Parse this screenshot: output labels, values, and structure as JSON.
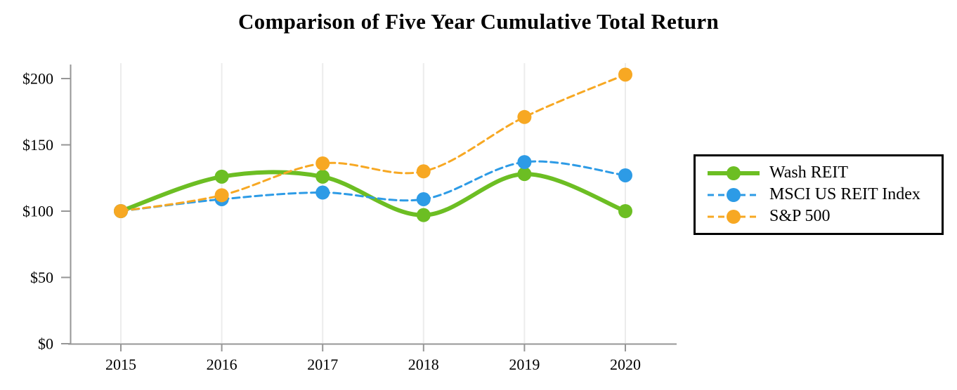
{
  "chart_data": {
    "type": "line",
    "title": "Comparison of Five Year Cumulative Total Return",
    "categories": [
      "2015",
      "2016",
      "2017",
      "2018",
      "2019",
      "2020"
    ],
    "series": [
      {
        "name": "Wash REIT",
        "color": "#6cbe23",
        "style": "solid",
        "line_width": 6,
        "values": [
          100,
          126,
          126,
          97,
          128,
          100
        ]
      },
      {
        "name": "MSCI US REIT Index",
        "color": "#2d9be6",
        "style": "dashed",
        "line_width": 3,
        "values": [
          100,
          109,
          114,
          109,
          137,
          127
        ]
      },
      {
        "name": "S&P 500",
        "color": "#f7a823",
        "style": "dashed",
        "line_width": 3,
        "values": [
          100,
          112,
          136,
          130,
          171,
          203
        ]
      }
    ],
    "xlabel": "",
    "ylabel": "",
    "ylim": [
      0,
      200
    ],
    "ytick_step": 50,
    "ytick_labels": [
      "$0",
      "$50",
      "$100",
      "$150",
      "$200"
    ],
    "grid": "vertical-only",
    "legend_position": "right",
    "marker": "circle",
    "axis_color": "#969696",
    "grid_color": "#ececec",
    "background_color": "#ffffff"
  }
}
